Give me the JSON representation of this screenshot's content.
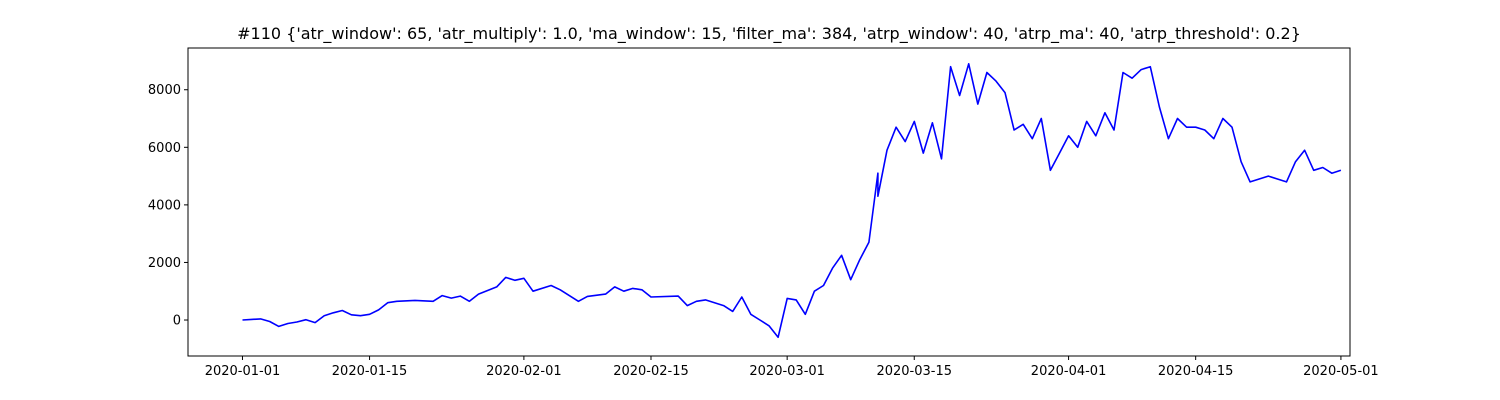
{
  "chart_data": {
    "type": "line",
    "title": "#110 {'atr_window': 65, 'atr_multiply': 1.0, 'ma_window': 15, 'filter_ma': 384, 'atrp_window': 40, 'atrp_ma': 40, 'atrp_threshold': 0.2}",
    "xlabel": "",
    "ylabel": "",
    "x_axis": "date",
    "xlim": [
      "2019-12-26",
      "2020-05-02"
    ],
    "ylim": [
      -1250,
      9450
    ],
    "grid": false,
    "legend": "none",
    "line_color": "#0000ff",
    "x_ticks": [
      "2020-01-01",
      "2020-01-15",
      "2020-02-01",
      "2020-02-15",
      "2020-03-01",
      "2020-03-15",
      "2020-04-01",
      "2020-04-15",
      "2020-05-01"
    ],
    "y_ticks": [
      0,
      2000,
      4000,
      6000,
      8000
    ],
    "series": [
      {
        "name": "",
        "points": [
          [
            "2020-01-01",
            0
          ],
          [
            "2020-01-02",
            20
          ],
          [
            "2020-01-03",
            40
          ],
          [
            "2020-01-04",
            -50
          ],
          [
            "2020-01-05",
            -220
          ],
          [
            "2020-01-06",
            -120
          ],
          [
            "2020-01-07",
            -70
          ],
          [
            "2020-01-08",
            10
          ],
          [
            "2020-01-09",
            -90
          ],
          [
            "2020-01-10",
            150
          ],
          [
            "2020-01-11",
            250
          ],
          [
            "2020-01-12",
            330
          ],
          [
            "2020-01-13",
            180
          ],
          [
            "2020-01-14",
            150
          ],
          [
            "2020-01-15",
            200
          ],
          [
            "2020-01-16",
            350
          ],
          [
            "2020-01-17",
            600
          ],
          [
            "2020-01-18",
            650
          ],
          [
            "2020-01-20",
            680
          ],
          [
            "2020-01-22",
            650
          ],
          [
            "2020-01-23",
            850
          ],
          [
            "2020-01-24",
            760
          ],
          [
            "2020-01-25",
            830
          ],
          [
            "2020-01-26",
            650
          ],
          [
            "2020-01-27",
            900
          ],
          [
            "2020-01-29",
            1150
          ],
          [
            "2020-01-30",
            1480
          ],
          [
            "2020-01-31",
            1380
          ],
          [
            "2020-02-01",
            1450
          ],
          [
            "2020-02-02",
            1000
          ],
          [
            "2020-02-04",
            1200
          ],
          [
            "2020-02-05",
            1050
          ],
          [
            "2020-02-06",
            850
          ],
          [
            "2020-02-07",
            650
          ],
          [
            "2020-02-08",
            820
          ],
          [
            "2020-02-10",
            900
          ],
          [
            "2020-02-11",
            1150
          ],
          [
            "2020-02-12",
            1000
          ],
          [
            "2020-02-13",
            1100
          ],
          [
            "2020-02-14",
            1050
          ],
          [
            "2020-02-15",
            800
          ],
          [
            "2020-02-18",
            830
          ],
          [
            "2020-02-19",
            500
          ],
          [
            "2020-02-20",
            650
          ],
          [
            "2020-02-21",
            700
          ],
          [
            "2020-02-23",
            500
          ],
          [
            "2020-02-24",
            300
          ],
          [
            "2020-02-25",
            800
          ],
          [
            "2020-02-26",
            200
          ],
          [
            "2020-02-27",
            0
          ],
          [
            "2020-02-28",
            -200
          ],
          [
            "2020-02-29",
            -600
          ],
          [
            "2020-03-01",
            750
          ],
          [
            "2020-03-02",
            700
          ],
          [
            "2020-03-03",
            200
          ],
          [
            "2020-03-04",
            1000
          ],
          [
            "2020-03-05",
            1200
          ],
          [
            "2020-03-06",
            1800
          ],
          [
            "2020-03-07",
            2250
          ],
          [
            "2020-03-08",
            1400
          ],
          [
            "2020-03-09",
            2100
          ],
          [
            "2020-03-10",
            2700
          ],
          [
            "2020-03-11",
            5100
          ],
          [
            "2020-03-11",
            4300
          ],
          [
            "2020-03-12",
            5900
          ],
          [
            "2020-03-13",
            6700
          ],
          [
            "2020-03-14",
            6200
          ],
          [
            "2020-03-15",
            6900
          ],
          [
            "2020-03-16",
            5800
          ],
          [
            "2020-03-17",
            6850
          ],
          [
            "2020-03-18",
            5600
          ],
          [
            "2020-03-19",
            8800
          ],
          [
            "2020-03-20",
            7800
          ],
          [
            "2020-03-21",
            8900
          ],
          [
            "2020-03-22",
            7500
          ],
          [
            "2020-03-23",
            8600
          ],
          [
            "2020-03-24",
            8300
          ],
          [
            "2020-03-25",
            7900
          ],
          [
            "2020-03-26",
            6600
          ],
          [
            "2020-03-27",
            6800
          ],
          [
            "2020-03-28",
            6300
          ],
          [
            "2020-03-29",
            7000
          ],
          [
            "2020-03-30",
            5200
          ],
          [
            "2020-03-31",
            5800
          ],
          [
            "2020-04-01",
            6400
          ],
          [
            "2020-04-02",
            6000
          ],
          [
            "2020-04-03",
            6900
          ],
          [
            "2020-04-04",
            6400
          ],
          [
            "2020-04-05",
            7200
          ],
          [
            "2020-04-06",
            6600
          ],
          [
            "2020-04-07",
            8600
          ],
          [
            "2020-04-08",
            8400
          ],
          [
            "2020-04-09",
            8700
          ],
          [
            "2020-04-10",
            8800
          ],
          [
            "2020-04-11",
            7400
          ],
          [
            "2020-04-12",
            6300
          ],
          [
            "2020-04-13",
            7000
          ],
          [
            "2020-04-14",
            6700
          ],
          [
            "2020-04-15",
            6700
          ],
          [
            "2020-04-16",
            6600
          ],
          [
            "2020-04-17",
            6300
          ],
          [
            "2020-04-18",
            7000
          ],
          [
            "2020-04-19",
            6700
          ],
          [
            "2020-04-20",
            5500
          ],
          [
            "2020-04-21",
            4800
          ],
          [
            "2020-04-22",
            4900
          ],
          [
            "2020-04-23",
            5000
          ],
          [
            "2020-04-24",
            4900
          ],
          [
            "2020-04-25",
            4800
          ],
          [
            "2020-04-26",
            5500
          ],
          [
            "2020-04-27",
            5900
          ],
          [
            "2020-04-28",
            5200
          ],
          [
            "2020-04-29",
            5300
          ],
          [
            "2020-04-30",
            5100
          ],
          [
            "2020-05-01",
            5200
          ]
        ]
      }
    ]
  }
}
